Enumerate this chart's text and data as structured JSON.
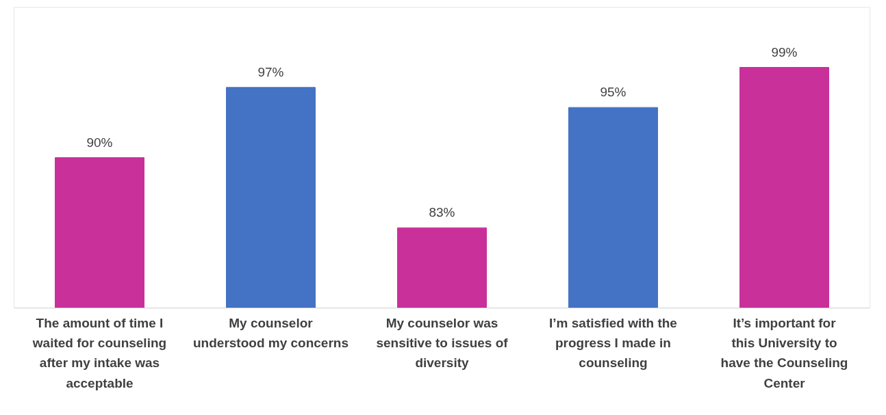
{
  "chart_data": {
    "type": "bar",
    "categories": [
      "The amount of time I waited for counseling after my intake was acceptable",
      "My counselor understood my concerns",
      "My counselor was sensitive to issues of diversity",
      "I’m satisfied with the progress I made in counseling",
      "It’s important for this University to have the Counseling Center"
    ],
    "values": [
      90,
      97,
      83,
      95,
      99
    ],
    "colors": [
      "#c9309a",
      "#4472c4",
      "#c9309a",
      "#4472c4",
      "#c9309a"
    ],
    "value_labels": [
      "90%",
      "97%",
      "83%",
      "95%",
      "99%"
    ],
    "ylim": [
      75,
      105
    ],
    "tick_labels": "x",
    "grid": false
  }
}
